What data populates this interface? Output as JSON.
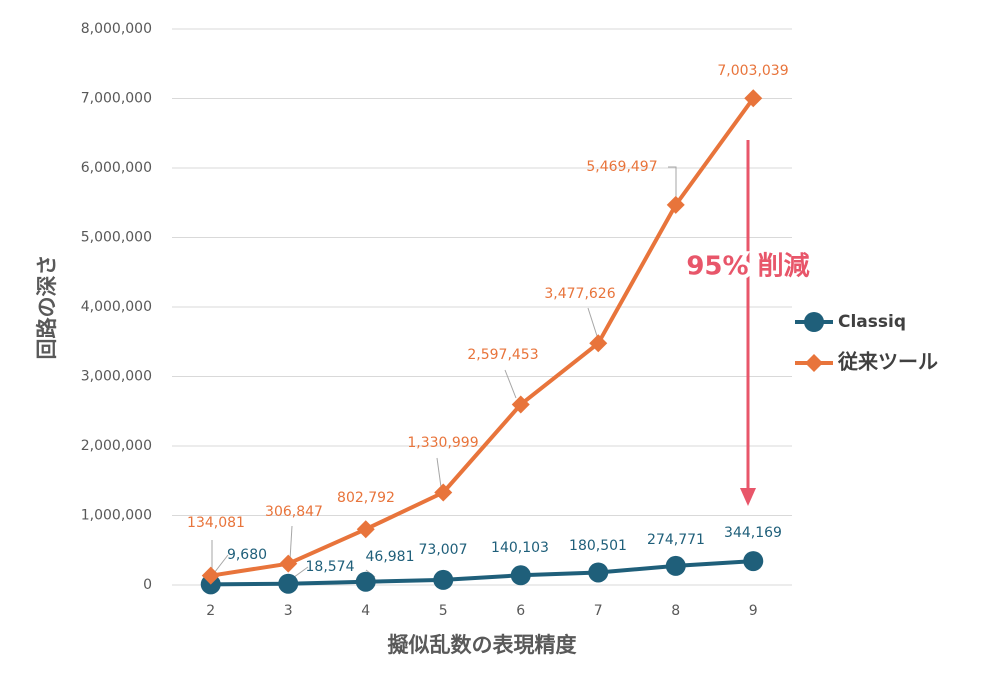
{
  "chart_data": {
    "type": "line",
    "y_label": "回路の深さ",
    "x_label": "擬似乱数の表現精度",
    "annotation": "95% 削減",
    "annotation_color": "#e8566a",
    "categories": [
      "2",
      "3",
      "4",
      "5",
      "6",
      "7",
      "8",
      "9"
    ],
    "series": [
      {
        "name": "Classiq",
        "color": "#1f5f7a",
        "marker": "circle",
        "values": [
          9680,
          18574,
          46981,
          73007,
          140103,
          180501,
          274771,
          344169
        ],
        "value_labels": [
          "9,680",
          "18,574",
          "46,981",
          "73,007",
          "140,103",
          "180,501",
          "274,771",
          "344,169"
        ]
      },
      {
        "name": "従来ツール",
        "color": "#e8743b",
        "marker": "diamond",
        "values": [
          134081,
          306847,
          802792,
          1330999,
          2597453,
          3477626,
          5469497,
          7003039
        ],
        "value_labels": [
          "134,081",
          "306,847",
          "802,792",
          "1,330,999",
          "2,597,453",
          "3,477,626",
          "5,469,497",
          "7,003,039"
        ]
      }
    ],
    "ylim": [
      0,
      8000000
    ],
    "yticks": [
      0,
      {
        "value": 1000000,
        "label": "1,000,000"
      },
      {
        "value": 2000000,
        "label": "2,000,000"
      },
      {
        "value": 3000000,
        "label": "3,000,000"
      },
      {
        "value": 4000000,
        "label": "4,000,000"
      },
      {
        "value": 5000000,
        "label": "5,000,000"
      },
      {
        "value": 6000000,
        "label": "6,000,000"
      },
      {
        "value": 7000000,
        "label": "7,000,000"
      },
      {
        "value": 8000000,
        "label": "8,000,000"
      }
    ],
    "grid": true
  }
}
